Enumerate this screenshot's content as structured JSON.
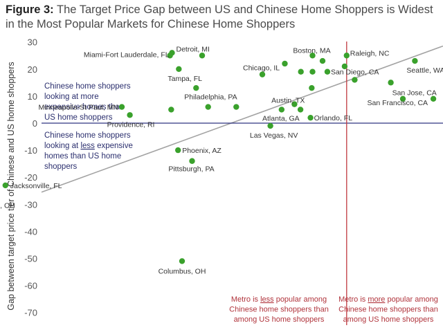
{
  "figure_label": "Figure 3:",
  "figure_title": "The Target Price Gap between US and Chinese Home Shoppers is Widest in the Most Popular Markets for Chinese Home Shoppers",
  "colors": {
    "point": "#3aa12c",
    "trend": "#a3a3a3",
    "hline": "#2e3380",
    "vline": "#c0393f",
    "note": "#2b2f6e",
    "note_red": "#b0333b"
  },
  "chart_data": {
    "type": "scatter",
    "title": "The Target Price Gap between US and Chinese Home Shoppers is Widest in the Most Popular Markets for Chinese Home Shoppers",
    "ylabel": "Gap between target price tier of Chinese and US home shoppers",
    "xlabel": "",
    "ylim": [
      -70,
      30
    ],
    "yticks": [
      30,
      20,
      10,
      0,
      -10,
      -20,
      -30,
      -40,
      -50,
      -60,
      -70
    ],
    "x_axis_ticks_shown": false,
    "grid": false,
    "trendline": [
      [
        0,
        -25.5
      ],
      [
        1,
        28.5
      ]
    ],
    "points": [
      {
        "x": 0.325,
        "y": 26,
        "label": "Detroit, MI"
      },
      {
        "x": 0.32,
        "y": 25,
        "label": "Miami-Fort Lauderdale, FL"
      },
      {
        "x": 0.4,
        "y": 25,
        "label": ""
      },
      {
        "x": 0.675,
        "y": 25,
        "label": "Boston, MA"
      },
      {
        "x": 0.76,
        "y": 25,
        "label": "Raleigh, NC"
      },
      {
        "x": 0.7,
        "y": 23,
        "label": ""
      },
      {
        "x": 0.606,
        "y": 22,
        "label": ""
      },
      {
        "x": 0.93,
        "y": 23,
        "label": "Seattle, WA"
      },
      {
        "x": 0.755,
        "y": 21,
        "label": ""
      },
      {
        "x": 0.342,
        "y": 20,
        "label": "Tampa, FL"
      },
      {
        "x": 0.646,
        "y": 19,
        "label": ""
      },
      {
        "x": 0.675,
        "y": 19,
        "label": ""
      },
      {
        "x": 0.712,
        "y": 19,
        "label": "San Diego, CA"
      },
      {
        "x": 0.55,
        "y": 18,
        "label": "Chicago, IL"
      },
      {
        "x": 0.78,
        "y": 16,
        "label": ""
      },
      {
        "x": 0.87,
        "y": 15,
        "label": "San Jose, CA"
      },
      {
        "x": 0.385,
        "y": 13,
        "label": ""
      },
      {
        "x": 0.673,
        "y": 13,
        "label": ""
      },
      {
        "x": 0.9,
        "y": 9,
        "label": ""
      },
      {
        "x": 0.976,
        "y": 9,
        "label": "San Francisco, CA"
      },
      {
        "x": 0.63,
        "y": 7,
        "label": ""
      },
      {
        "x": 0.485,
        "y": 6,
        "label": "Philadelphia, PA"
      },
      {
        "x": 0.415,
        "y": 6,
        "label": ""
      },
      {
        "x": 0.598,
        "y": 5,
        "label": "Atlanta, GA"
      },
      {
        "x": 0.645,
        "y": 5,
        "label": "Austin, TX"
      },
      {
        "x": 0.2,
        "y": 6,
        "label": "Minneapolis-St Paul, MN"
      },
      {
        "x": 0.323,
        "y": 5,
        "label": ""
      },
      {
        "x": 0.22,
        "y": 3,
        "label": "Providence, RI"
      },
      {
        "x": 0.67,
        "y": 2,
        "label": "Orlando, FL"
      },
      {
        "x": 0.57,
        "y": -1,
        "label": "Las Vegas, NV"
      },
      {
        "x": 0.34,
        "y": -10,
        "label": "Phoenix, AZ"
      },
      {
        "x": 0.375,
        "y": -14,
        "label": "Pittsburgh, PA"
      },
      {
        "x": -0.09,
        "y": -23,
        "label": "Jacksonville, FL"
      },
      {
        "x": -0.13,
        "y": -27,
        "label": "Cleveland, OH"
      },
      {
        "x": 0.35,
        "y": -51,
        "label": "Columbus, OH"
      }
    ],
    "hline_y": 0,
    "vline_x": 0.76
  },
  "annotations": {
    "upper_left": [
      "Chinese home shoppers",
      "looking at more",
      "expensive homes than",
      "US home shoppers"
    ],
    "upper_left_underlined": "more",
    "lower_left": [
      "Chinese home shoppers",
      "looking at less expensive",
      "homes than US home",
      "shoppers"
    ],
    "lower_left_underlined": "less",
    "bottom_left": [
      "Metro is less popular among",
      "Chinese home shoppers than",
      "among US home shoppers"
    ],
    "bottom_left_underlined": "less",
    "bottom_right": [
      "Metro is more popular among",
      "Chinese home shoppers than",
      "among US home shoppers"
    ],
    "bottom_right_underlined": "more"
  }
}
